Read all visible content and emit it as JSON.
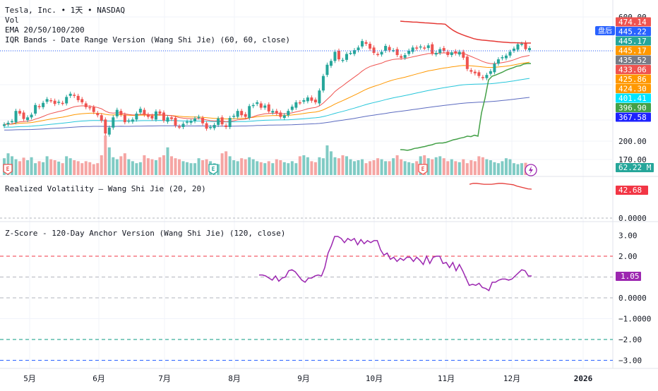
{
  "header": {
    "symbol_line": "Tesla, Inc. • 1天 • NASDAQ",
    "vol_label": "Vol",
    "ema_label": "EMA 20/50/100/200",
    "iqr_label": "IQR Bands - Date Range Version (Wang Shi Jie) (60, 60, close)",
    "rv_label": "Realized Volatility — Wang Shi Jie (20, 20)",
    "z_label": "Z-Score - 120-Day Anchor Version (Wang Shi Jie) (120, close)"
  },
  "session_badge": "盘后",
  "colors": {
    "up": "#26a69a",
    "down": "#ef5350",
    "vol_up": "#80cbc4",
    "vol_down": "#f5a5a3",
    "ema20": "#ef5350",
    "ema50": "#ff9800",
    "ema100": "#26c6da",
    "ema200": "#5c6bc0",
    "iqr_upper": "#e53935",
    "iqr_lower": "#43a047",
    "zscore": "#9c27b0",
    "rv": "#e53935"
  },
  "price_axis": {
    "ticks": [
      "600.00",
      "200.00",
      "170.00"
    ]
  },
  "price_tags": [
    {
      "label": "474.14",
      "color": "#ef5350"
    },
    {
      "label": "445.22",
      "color": "#2962ff"
    },
    {
      "label": "445.17",
      "color": "#26a69a"
    },
    {
      "label": "445.17",
      "color": "#ff9800"
    },
    {
      "label": "435.52",
      "color": "#787b86"
    },
    {
      "label": "433.06",
      "color": "#ef5350"
    },
    {
      "label": "425.86",
      "color": "#ff9800"
    },
    {
      "label": "424.30",
      "color": "#ff9800"
    },
    {
      "label": "401.41",
      "color": "#00e5ff"
    },
    {
      "label": "396.90",
      "color": "#43a047"
    },
    {
      "label": "367.58",
      "color": "#1e22ff"
    }
  ],
  "volume_tag": "62.22 M",
  "rv_tag": "42.68",
  "rv_axis": "0.0000",
  "z_tag": "1.05",
  "z_axis": [
    "3.00",
    "2.00",
    "1.00",
    "0.0000",
    "−1.0000",
    "−2.00",
    "−3.00"
  ],
  "time_axis": [
    "5月",
    "6月",
    "7月",
    "8月",
    "9月",
    "10月",
    "11月",
    "12月",
    "2026"
  ],
  "earnings_marker": "E",
  "chart_data": {
    "type": "line",
    "title": "Tesla, Inc. • 1天 • NASDAQ",
    "price_series": {
      "name": "close",
      "values": [
        305,
        308,
        311,
        330,
        325,
        315,
        318,
        323,
        341,
        337,
        345,
        352,
        349,
        343,
        347,
        344,
        356,
        362,
        358,
        350,
        346,
        337,
        335,
        328,
        322,
        312,
        288,
        299,
        318,
        332,
        323,
        309,
        312,
        314,
        325,
        334,
        323,
        319,
        316,
        329,
        325,
        312,
        318,
        315,
        303,
        300,
        306,
        310,
        311,
        316,
        319,
        307,
        297,
        300,
        304,
        316,
        305,
        300,
        317,
        321,
        330,
        322,
        319,
        339,
        341,
        346,
        336,
        340,
        329,
        330,
        325,
        319,
        322,
        330,
        338,
        346,
        345,
        350,
        355,
        349,
        346,
        368,
        395,
        416,
        423,
        440,
        426,
        425,
        436,
        438,
        443,
        448,
        460,
        455,
        446,
        438,
        435,
        440,
        451,
        443,
        443,
        434,
        429,
        434,
        442,
        448,
        446,
        450,
        447,
        452,
        437,
        438,
        445,
        442,
        434,
        439,
        437,
        440,
        429,
        408,
        403,
        400,
        395,
        391,
        397,
        404,
        418,
        426,
        430,
        433,
        440,
        446,
        454,
        455,
        445,
        447
      ]
    },
    "volume_series": {
      "name": "Vol",
      "values_m": [
        85,
        110,
        95,
        80,
        70,
        88,
        75,
        90,
        60,
        70,
        65,
        95,
        80,
        75,
        68,
        60,
        95,
        85,
        75,
        70,
        60,
        70,
        65,
        55,
        60,
        100,
        200,
        140,
        90,
        80,
        95,
        110,
        80,
        70,
        60,
        65,
        100,
        85,
        80,
        75,
        90,
        100,
        140,
        95,
        85,
        80,
        70,
        65,
        60,
        60,
        85,
        75,
        80,
        70,
        60,
        55,
        110,
        120,
        95,
        75,
        70,
        85,
        80,
        90,
        80,
        70,
        65,
        60,
        70,
        60,
        80,
        75,
        65,
        60,
        70,
        60,
        95,
        100,
        90,
        70,
        65,
        90,
        85,
        150,
        120,
        90,
        85,
        100,
        95,
        80,
        70,
        75,
        80,
        60,
        70,
        75,
        85,
        80,
        70,
        70,
        85,
        100,
        80,
        70,
        65,
        60,
        70,
        95,
        100,
        85,
        80,
        90,
        95,
        85,
        70,
        80,
        70,
        65,
        80,
        60,
        75,
        70,
        95,
        90,
        80,
        75,
        65,
        60,
        70,
        85,
        80,
        60,
        55,
        60,
        62
      ]
    },
    "iqr_upper": [
      603,
      601,
      600,
      598,
      597,
      595,
      593,
      592,
      590,
      588,
      587,
      585,
      565,
      548,
      535,
      525,
      516,
      508,
      500,
      495,
      492,
      490,
      487,
      485,
      482,
      480,
      478,
      476,
      476,
      475,
      474,
      474,
      474
    ],
    "iqr_lower": [
      45,
      44,
      42,
      45,
      50,
      52,
      55,
      58,
      62,
      65,
      70,
      72,
      72,
      75,
      80,
      85,
      88,
      92,
      95,
      100,
      98,
      104,
      100,
      195,
      255,
      330,
      345,
      350,
      356,
      362,
      370,
      375,
      380,
      386,
      388,
      395,
      397,
      397
    ],
    "z_score": [
      1.1,
      1.1,
      1.05,
      0.95,
      0.85,
      1.05,
      0.8,
      0.95,
      1.0,
      1.3,
      1.35,
      1.25,
      1.05,
      0.85,
      0.75,
      0.95,
      0.95,
      1.05,
      1.1,
      1.05,
      1.45,
      2.15,
      2.5,
      2.95,
      2.95,
      2.85,
      2.65,
      2.85,
      2.75,
      2.85,
      2.55,
      2.8,
      2.6,
      2.75,
      2.65,
      2.75,
      2.75,
      2.3,
      2.05,
      2.15,
      1.85,
      1.95,
      1.75,
      1.9,
      1.8,
      1.95,
      1.95,
      1.75,
      1.95,
      1.8,
      1.6,
      2.0,
      1.65,
      1.95,
      2.0,
      2.0,
      1.65,
      1.7,
      1.45,
      1.7,
      1.3,
      1.6,
      1.3,
      0.95,
      0.6,
      0.65,
      0.6,
      0.7,
      0.5,
      0.45,
      0.35,
      0.75,
      0.75,
      0.85,
      0.9,
      0.9,
      0.85,
      0.9,
      1.05,
      1.2,
      1.35,
      1.3,
      1.05,
      1.05
    ],
    "realized_volatility": [
      48,
      49,
      49,
      48.5,
      48,
      48,
      48,
      48.5,
      49,
      49,
      48.5,
      48,
      47.5,
      46,
      45,
      44,
      43,
      42.7
    ],
    "z_levels": {
      "upper_dash": 2.0,
      "lower_dash": -2.0,
      "outer_dash": -3.0,
      "zero_dash": 0.0
    }
  }
}
